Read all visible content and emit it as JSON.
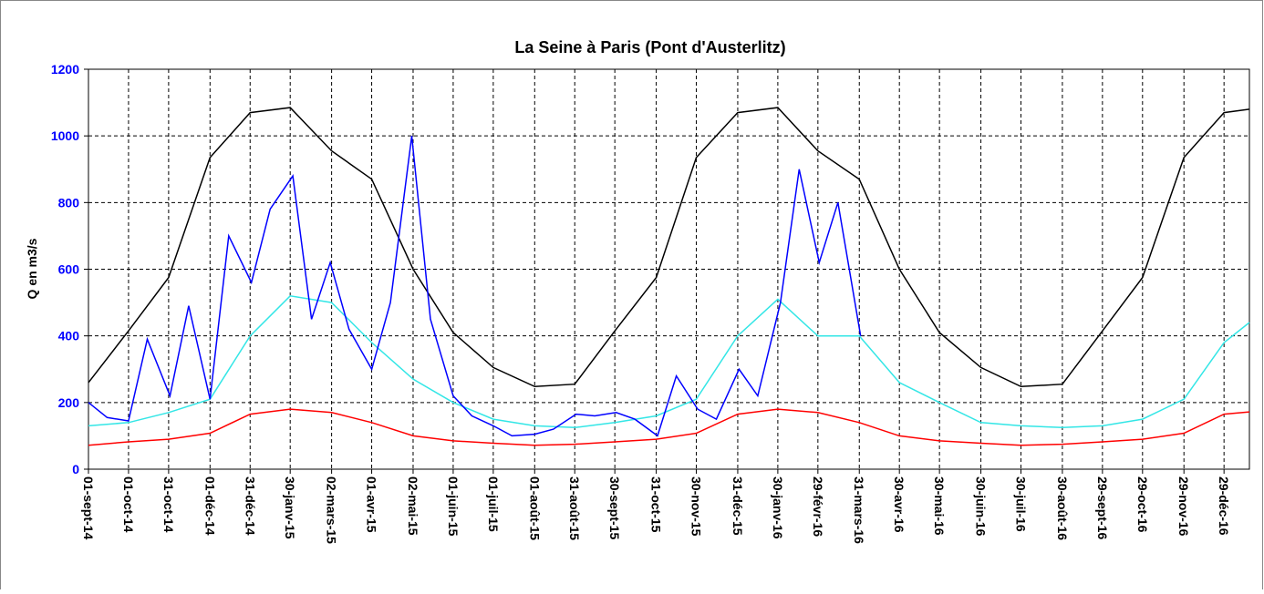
{
  "chart_data": {
    "type": "line",
    "title": "La Seine à Paris (Pont d'Austerlitz)",
    "ylabel": "Q en m3/s",
    "xlim": [
      "2014-09-01",
      "2017-01-17"
    ],
    "ylim": [
      0,
      1200
    ],
    "yticks": [
      0,
      200,
      400,
      600,
      800,
      1000,
      1200
    ],
    "grid": true,
    "xticks": [
      {
        "value": "2014-09-01",
        "label": "01-sept-14"
      },
      {
        "value": "2014-10-01",
        "label": "01-oct-14"
      },
      {
        "value": "2014-10-31",
        "label": "31-oct-14"
      },
      {
        "value": "2014-12-01",
        "label": "01-déc-14"
      },
      {
        "value": "2014-12-31",
        "label": "31-déc-14"
      },
      {
        "value": "2015-01-30",
        "label": "30-janv-15"
      },
      {
        "value": "2015-03-02",
        "label": "02-mars-15"
      },
      {
        "value": "2015-04-01",
        "label": "01-avr-15"
      },
      {
        "value": "2015-05-02",
        "label": "02-mai-15"
      },
      {
        "value": "2015-06-01",
        "label": "01-juin-15"
      },
      {
        "value": "2015-07-01",
        "label": "01-juil-15"
      },
      {
        "value": "2015-08-01",
        "label": "01-août-15"
      },
      {
        "value": "2015-08-31",
        "label": "31-août-15"
      },
      {
        "value": "2015-09-30",
        "label": "30-sept-15"
      },
      {
        "value": "2015-10-31",
        "label": "31-oct-15"
      },
      {
        "value": "2015-11-30",
        "label": "30-nov-15"
      },
      {
        "value": "2015-12-31",
        "label": "31-déc-15"
      },
      {
        "value": "2016-01-30",
        "label": "30-janv-16"
      },
      {
        "value": "2016-02-29",
        "label": "29-févr-16"
      },
      {
        "value": "2016-03-31",
        "label": "31-mars-16"
      },
      {
        "value": "2016-04-30",
        "label": "30-avr-16"
      },
      {
        "value": "2016-05-30",
        "label": "30-mai-16"
      },
      {
        "value": "2016-06-30",
        "label": "30-juin-16"
      },
      {
        "value": "2016-07-30",
        "label": "30-juil-16"
      },
      {
        "value": "2016-08-30",
        "label": "30-août-16"
      },
      {
        "value": "2016-09-29",
        "label": "29-sept-16"
      },
      {
        "value": "2016-10-29",
        "label": "29-oct-16"
      },
      {
        "value": "2016-11-29",
        "label": "29-nov-16"
      },
      {
        "value": "2016-12-29",
        "label": "29-déc-16"
      }
    ],
    "series": [
      {
        "color": "#000000",
        "x": [
          "2014-09-01",
          "2014-10-01",
          "2014-10-31",
          "2014-12-01",
          "2014-12-31",
          "2015-01-30",
          "2015-03-02",
          "2015-04-01",
          "2015-05-02",
          "2015-06-01",
          "2015-07-01",
          "2015-08-01",
          "2015-08-31",
          "2015-09-30",
          "2015-10-31",
          "2015-11-30",
          "2015-12-31",
          "2016-01-30",
          "2016-02-29",
          "2016-03-31",
          "2016-04-30",
          "2016-05-30",
          "2016-06-30",
          "2016-07-30",
          "2016-08-30",
          "2016-09-29",
          "2016-10-29",
          "2016-11-29",
          "2016-12-29",
          "2017-01-17"
        ],
        "values": [
          260,
          415,
          575,
          935,
          1070,
          1085,
          955,
          870,
          600,
          410,
          305,
          248,
          255,
          415,
          575,
          935,
          1070,
          1085,
          955,
          870,
          600,
          410,
          305,
          248,
          255,
          415,
          575,
          935,
          1070,
          1080
        ]
      },
      {
        "color": "#ff0000",
        "x": [
          "2014-09-01",
          "2014-10-01",
          "2014-10-31",
          "2014-12-01",
          "2014-12-31",
          "2015-01-30",
          "2015-03-02",
          "2015-04-01",
          "2015-05-02",
          "2015-06-01",
          "2015-07-01",
          "2015-08-01",
          "2015-08-31",
          "2015-09-30",
          "2015-10-31",
          "2015-11-30",
          "2015-12-31",
          "2016-01-30",
          "2016-02-29",
          "2016-03-31",
          "2016-04-30",
          "2016-05-30",
          "2016-06-30",
          "2016-07-30",
          "2016-08-30",
          "2016-09-29",
          "2016-10-29",
          "2016-11-29",
          "2016-12-29",
          "2017-01-17"
        ],
        "values": [
          72,
          82,
          90,
          108,
          165,
          180,
          170,
          140,
          100,
          85,
          78,
          72,
          75,
          82,
          90,
          108,
          165,
          180,
          170,
          140,
          100,
          85,
          78,
          72,
          75,
          82,
          90,
          108,
          165,
          172
        ]
      },
      {
        "color": "#33e6e6",
        "x": [
          "2014-09-01",
          "2014-10-01",
          "2014-10-31",
          "2014-12-01",
          "2014-12-31",
          "2015-01-30",
          "2015-03-02",
          "2015-04-01",
          "2015-05-02",
          "2015-06-01",
          "2015-07-01",
          "2015-08-01",
          "2015-08-31",
          "2015-09-30",
          "2015-10-31",
          "2015-11-30",
          "2015-12-31",
          "2016-01-30",
          "2016-02-29",
          "2016-03-31",
          "2016-04-30",
          "2016-05-30",
          "2016-06-30",
          "2016-07-30",
          "2016-08-30",
          "2016-09-29",
          "2016-10-29",
          "2016-11-29",
          "2016-12-29",
          "2017-01-17"
        ],
        "values": [
          130,
          140,
          170,
          210,
          400,
          520,
          500,
          380,
          270,
          200,
          150,
          130,
          125,
          140,
          160,
          210,
          400,
          510,
          400,
          400,
          260,
          200,
          140,
          130,
          125,
          130,
          150,
          210,
          380,
          440
        ]
      },
      {
        "color": "#0000ff",
        "x": [
          "2014-09-01",
          "2014-09-15",
          "2014-10-01",
          "2014-10-15",
          "2014-11-01",
          "2014-11-15",
          "2014-12-01",
          "2014-12-15",
          "2015-01-01",
          "2015-01-15",
          "2015-02-01",
          "2015-02-15",
          "2015-03-01",
          "2015-03-15",
          "2015-04-01",
          "2015-04-15",
          "2015-05-01",
          "2015-05-15",
          "2015-06-01",
          "2015-06-15",
          "2015-07-01",
          "2015-07-15",
          "2015-08-01",
          "2015-08-15",
          "2015-09-01",
          "2015-09-15",
          "2015-10-01",
          "2015-10-15",
          "2015-11-01",
          "2015-11-15",
          "2015-12-01",
          "2015-12-15",
          "2016-01-01",
          "2016-01-15",
          "2016-02-01",
          "2016-02-15",
          "2016-03-01",
          "2016-03-15",
          "2016-04-01"
        ],
        "values": [
          200,
          155,
          145,
          390,
          220,
          490,
          210,
          700,
          560,
          780,
          880,
          450,
          620,
          420,
          300,
          500,
          1000,
          450,
          220,
          160,
          130,
          100,
          105,
          120,
          165,
          160,
          170,
          150,
          100,
          280,
          180,
          150,
          300,
          220,
          500,
          900,
          620,
          800,
          400
        ]
      }
    ]
  }
}
